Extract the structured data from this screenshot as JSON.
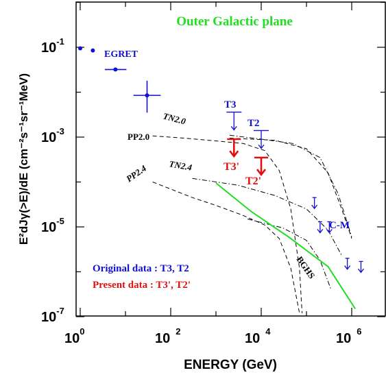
{
  "chart_data": {
    "type": "scatter",
    "title": "Outer Galactic plane",
    "xlabel": "ENERGY (GeV)",
    "ylabel": "E²dJγ(>E)/dE (cm⁻²s⁻¹sr⁻¹MeV)",
    "xscale": "log",
    "yscale": "log",
    "xlim": [
      0.6,
      4000000
    ],
    "ylim": [
      1e-07,
      1.2
    ],
    "x_ticks": [
      {
        "base": "10",
        "exp": "0",
        "value": 1
      },
      {
        "base": "10",
        "exp": "2",
        "value": 100
      },
      {
        "base": "10",
        "exp": "4",
        "value": 10000
      },
      {
        "base": "10",
        "exp": "6",
        "value": 1000000
      }
    ],
    "y_ticks": [
      {
        "base": "10",
        "exp": "-1",
        "value": 0.1
      },
      {
        "base": "10",
        "exp": "-3",
        "value": 0.001
      },
      {
        "base": "10",
        "exp": "-5",
        "value": 1e-05
      },
      {
        "base": "10",
        "exp": "-7",
        "value": 1e-07
      }
    ],
    "colors": {
      "egret": "#1010d0",
      "original": "#1010d0",
      "present": "#e01010",
      "bghs": "#22dd22",
      "model": "#000000"
    },
    "series": [
      {
        "name": "EGRET",
        "style": "points",
        "points": [
          {
            "x": 1.0,
            "y": 0.095
          },
          {
            "x": 1.9,
            "y": 0.085
          },
          {
            "x": 6.0,
            "y": 0.032,
            "xerr": [
              3.5,
              10.5
            ]
          },
          {
            "x": 30,
            "y": 0.0085,
            "xerr": [
              15,
              60
            ],
            "yerr": [
              0.0035,
              0.018
            ]
          }
        ]
      },
      {
        "name": "T3",
        "style": "upper-limit",
        "points": [
          {
            "x": 2500,
            "y": 0.0036
          }
        ]
      },
      {
        "name": "T2",
        "style": "upper-limit",
        "points": [
          {
            "x": 10000,
            "y": 0.0014
          }
        ]
      },
      {
        "name": "T3'",
        "style": "upper-limit-present",
        "points": [
          {
            "x": 2500,
            "y": 0.0009
          }
        ]
      },
      {
        "name": "T2'",
        "style": "upper-limit-present",
        "points": [
          {
            "x": 10000,
            "y": 0.00035
          }
        ]
      },
      {
        "name": "C-M",
        "style": "upper-limit",
        "points": [
          {
            "x": 150000,
            "y": 4.5e-05
          },
          {
            "x": 200000,
            "y": 1.3e-05
          },
          {
            "x": 320000,
            "y": 1.3e-05
          },
          {
            "x": 800000,
            "y": 2e-06
          },
          {
            "x": 1600000,
            "y": 1.7e-06
          }
        ]
      },
      {
        "name": "PP2.0",
        "style": "dashed",
        "points": [
          {
            "x": 40,
            "y": 0.00106
          },
          {
            "x": 200,
            "y": 0.00095
          },
          {
            "x": 1000,
            "y": 0.00082
          },
          {
            "x": 4000,
            "y": 0.00072
          },
          {
            "x": 12000,
            "y": 0.0005
          },
          {
            "x": 25000,
            "y": 0.00018
          },
          {
            "x": 45000,
            "y": 2.5e-05
          },
          {
            "x": 70000,
            "y": 1.2e-06
          },
          {
            "x": 80000,
            "y": 1.2e-07
          }
        ]
      },
      {
        "name": "PP2.4",
        "style": "dashed",
        "points": [
          {
            "x": 40,
            "y": 0.0001
          },
          {
            "x": 300,
            "y": 4.5e-05
          },
          {
            "x": 1000,
            "y": 3e-05
          },
          {
            "x": 4000,
            "y": 1.8e-05
          },
          {
            "x": 12000,
            "y": 1.1e-05
          },
          {
            "x": 25000,
            "y": 5.5e-06
          },
          {
            "x": 45000,
            "y": 1.2e-06
          },
          {
            "x": 70000,
            "y": 1.2e-07
          }
        ]
      },
      {
        "name": "PP-upper",
        "style": "dashed",
        "points": [
          {
            "x": 2000,
            "y": 0.00095
          },
          {
            "x": 20000,
            "y": 0.00085
          },
          {
            "x": 100000,
            "y": 0.00055
          },
          {
            "x": 300000,
            "y": 0.00016
          },
          {
            "x": 600000,
            "y": 2.5e-05
          },
          {
            "x": 1000000,
            "y": 5.5e-06
          }
        ]
      },
      {
        "name": "TN2.0",
        "style": "dashdot",
        "points": [
          {
            "x": 2000,
            "y": 0.0011
          },
          {
            "x": 10000,
            "y": 0.0009
          },
          {
            "x": 50000,
            "y": 0.00072
          },
          {
            "x": 200000,
            "y": 0.00035
          },
          {
            "x": 500000,
            "y": 5.5e-05
          },
          {
            "x": 1000000,
            "y": 6e-06
          }
        ]
      },
      {
        "name": "TN2.4",
        "style": "dashdot",
        "points": [
          {
            "x": 300,
            "y": 0.00012
          },
          {
            "x": 3000,
            "y": 8.5e-05
          },
          {
            "x": 20000,
            "y": 5e-05
          },
          {
            "x": 100000,
            "y": 2.5e-05
          },
          {
            "x": 300000,
            "y": 8.5e-06
          },
          {
            "x": 600000,
            "y": 2.3e-06
          }
        ]
      },
      {
        "name": "TN2.4-lower",
        "style": "dashdot",
        "points": [
          {
            "x": 5000,
            "y": 1.5e-05
          },
          {
            "x": 30000,
            "y": 9.5e-06
          },
          {
            "x": 100000,
            "y": 5e-06
          },
          {
            "x": 200000,
            "y": 1.8e-06
          },
          {
            "x": 350000,
            "y": 4e-07
          }
        ]
      },
      {
        "name": "BGHS",
        "style": "solid",
        "points": [
          {
            "x": 1000,
            "y": 9.5e-05
          },
          {
            "x": 6000,
            "y": 2.2e-05
          },
          {
            "x": 40000,
            "y": 6e-06
          },
          {
            "x": 300000,
            "y": 1.3e-06
          },
          {
            "x": 1200000,
            "y": 1.5e-07
          }
        ]
      }
    ],
    "labels": {
      "egret": "EGRET",
      "t3": "T3",
      "t2": "T2",
      "t3p": "T3'",
      "t2p": "T2'",
      "cm": "C-M",
      "tn20": "TN2.0",
      "pp20": "PP2.0",
      "tn24": "TN2.4",
      "pp24": "PP2.4",
      "bghs": "BGHS"
    },
    "legend": {
      "original": "Original data : T3, T2",
      "present": "Present data : T3', T2'"
    },
    "grid": false
  }
}
